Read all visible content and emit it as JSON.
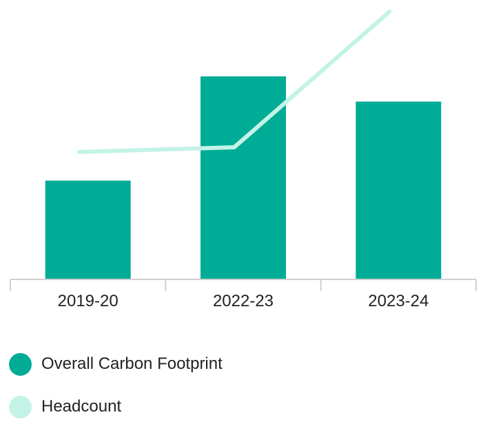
{
  "chart_data": {
    "type": "bar",
    "categories": [
      "2019-20",
      "2022-23",
      "2023-24"
    ],
    "series": [
      {
        "name": "Overall Carbon Footprint",
        "kind": "bar",
        "color": "#00AC96",
        "values": [
          145,
          298,
          261
        ]
      },
      {
        "name": "Headcount",
        "kind": "line",
        "color": "#C3F3E7",
        "values": [
          187,
          194,
          393
        ]
      }
    ],
    "ylim": [
      0,
      400
    ],
    "grid": false,
    "legend_position": "bottom-left"
  }
}
